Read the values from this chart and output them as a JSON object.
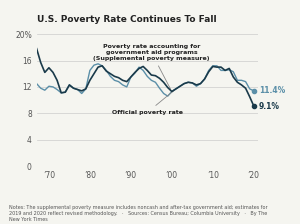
{
  "title": "U.S. Poverty Rate Continues To Fall",
  "supplemental_label": "Poverty rate accounting for\ngovernment aid programs\n(Supplemental poverty measure)",
  "official_label": "Official poverty rate",
  "end_label_supplemental": "11.4%",
  "end_label_official": "9.1%",
  "supplemental_color": "#5b8fa8",
  "official_color": "#1a3a4a",
  "annotation_color": "#5b8fa8",
  "background_color": "#f5f5f0",
  "note": "Notes: The supplemental poverty measure includes noncash and after-tax government aid; estimates for\n2019 and 2020 reflect revised methodology.   ·   Sources: Census Bureau; Columbia University   ·   By The\nNew York Times",
  "xlim": [
    1967,
    2021
  ],
  "ylim": [
    0,
    21
  ],
  "yticks": [
    0,
    4,
    8,
    12,
    16,
    20
  ],
  "xticks": [
    1970,
    1980,
    1990,
    2000,
    2010,
    2020
  ],
  "xticklabels": [
    "’70",
    "’80",
    "’90",
    "’00",
    "’10",
    "’20"
  ],
  "yticklabels": [
    "0",
    "4",
    "8",
    "12",
    "16",
    "20%"
  ],
  "supplemental_data": {
    "years": [
      1967,
      1968,
      1969,
      1970,
      1971,
      1972,
      1973,
      1974,
      1975,
      1976,
      1977,
      1978,
      1979,
      1980,
      1981,
      1982,
      1983,
      1984,
      1985,
      1986,
      1987,
      1988,
      1989,
      1990,
      1991,
      1992,
      1993,
      1994,
      1995,
      1996,
      1997,
      1998,
      1999,
      2000,
      2001,
      2002,
      2003,
      2004,
      2005,
      2006,
      2007,
      2008,
      2009,
      2010,
      2011,
      2012,
      2013,
      2014,
      2015,
      2016,
      2017,
      2018,
      2019,
      2020
    ],
    "values": [
      12.5,
      11.8,
      11.5,
      12.1,
      12.0,
      11.6,
      11.1,
      11.2,
      12.3,
      11.8,
      11.6,
      11.0,
      11.7,
      14.5,
      15.3,
      15.5,
      15.2,
      14.5,
      13.6,
      13.0,
      12.8,
      12.3,
      12.0,
      13.5,
      14.1,
      15.0,
      14.5,
      13.6,
      13.0,
      12.7,
      11.8,
      11.0,
      10.6,
      11.3,
      11.7,
      12.1,
      12.5,
      12.7,
      12.6,
      12.1,
      12.5,
      13.2,
      14.5,
      15.2,
      15.2,
      14.5,
      14.5,
      14.6,
      14.3,
      13.0,
      13.0,
      12.8,
      11.7,
      11.4
    ]
  },
  "official_data": {
    "years": [
      1967,
      1968,
      1969,
      1970,
      1971,
      1972,
      1973,
      1974,
      1975,
      1976,
      1977,
      1978,
      1979,
      1980,
      1981,
      1982,
      1983,
      1984,
      1985,
      1986,
      1987,
      1988,
      1989,
      1990,
      1991,
      1992,
      1993,
      1994,
      1995,
      1996,
      1997,
      1998,
      1999,
      2000,
      2001,
      2002,
      2003,
      2004,
      2005,
      2006,
      2007,
      2008,
      2009,
      2010,
      2011,
      2012,
      2013,
      2014,
      2015,
      2016,
      2017,
      2018,
      2019,
      2020
    ],
    "values": [
      17.8,
      15.7,
      14.2,
      14.9,
      14.2,
      13.0,
      11.1,
      11.2,
      12.3,
      11.8,
      11.6,
      11.4,
      11.7,
      13.0,
      14.0,
      15.0,
      15.2,
      14.4,
      14.0,
      13.6,
      13.4,
      13.0,
      12.8,
      13.5,
      14.2,
      14.8,
      15.1,
      14.5,
      13.8,
      13.7,
      13.3,
      12.7,
      11.9,
      11.3,
      11.7,
      12.1,
      12.5,
      12.7,
      12.6,
      12.3,
      12.5,
      13.2,
      14.3,
      15.1,
      15.0,
      15.0,
      14.5,
      14.8,
      13.5,
      12.7,
      12.3,
      11.8,
      10.5,
      9.1
    ]
  }
}
